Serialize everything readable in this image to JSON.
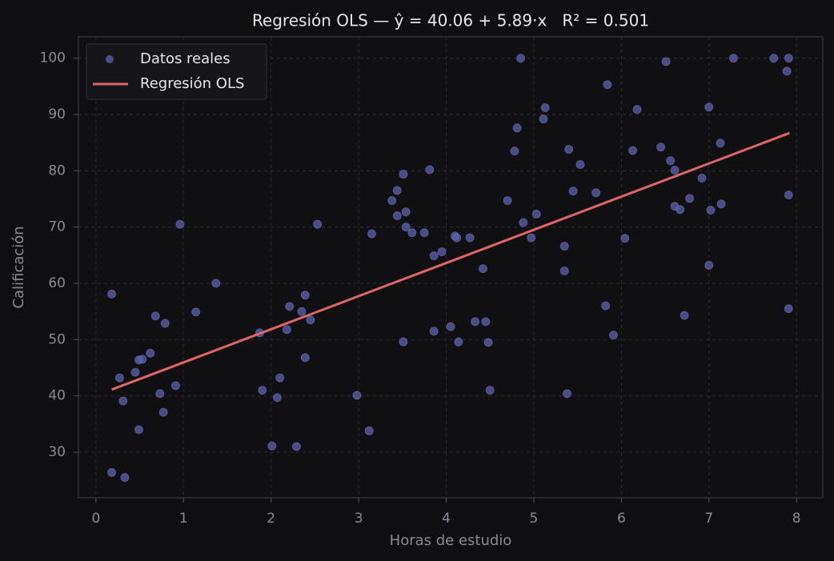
{
  "chart_data": {
    "type": "scatter",
    "title": "Regresión OLS — ŷ = 40.06 + 5.89·x   R² = 0.501",
    "x_label": "Horas de estudio",
    "y_label": "Calificación",
    "xlim": [
      -0.2,
      8.3
    ],
    "ylim": [
      21.9,
      103.8
    ],
    "xticks": [
      0,
      1,
      2,
      3,
      4,
      5,
      6,
      7,
      8
    ],
    "yticks": [
      30,
      40,
      50,
      60,
      70,
      80,
      90,
      100
    ],
    "grid": true,
    "legend": "upper left",
    "series": [
      {
        "name": "Datos reales",
        "type": "scatter",
        "color": "#5a62b0",
        "x": [
          0.18,
          0.18,
          0.27,
          0.31,
          0.33,
          0.45,
          0.49,
          0.49,
          0.53,
          0.62,
          0.68,
          0.73,
          0.77,
          0.79,
          0.91,
          0.96,
          1.14,
          1.37,
          1.87,
          1.9,
          2.01,
          2.07,
          2.1,
          2.18,
          2.21,
          2.29,
          2.35,
          2.39,
          2.39,
          2.45,
          2.53,
          2.98,
          3.12,
          3.15,
          3.38,
          3.44,
          3.44,
          3.51,
          3.51,
          3.54,
          3.54,
          3.61,
          3.75,
          3.81,
          3.86,
          3.86,
          3.95,
          4.05,
          4.1,
          4.12,
          4.14,
          4.27,
          4.33,
          4.42,
          4.45,
          4.48,
          4.5,
          4.7,
          4.78,
          4.81,
          4.85,
          4.88,
          4.97,
          5.03,
          5.11,
          5.13,
          5.35,
          5.35,
          5.38,
          5.4,
          5.45,
          5.53,
          5.71,
          5.82,
          5.84,
          5.91,
          6.04,
          6.13,
          6.18,
          6.45,
          6.51,
          6.56,
          6.61,
          6.61,
          6.67,
          6.72,
          6.78,
          6.92,
          7.0,
          7.0,
          7.02,
          7.13,
          7.14,
          7.28,
          7.74,
          7.89,
          7.91,
          7.91,
          7.91
        ],
        "values": [
          58.1,
          26.4,
          43.2,
          39.1,
          25.5,
          44.2,
          34.0,
          46.4,
          46.5,
          47.6,
          54.2,
          40.4,
          37.1,
          52.9,
          41.8,
          70.5,
          54.9,
          60.0,
          51.2,
          41.0,
          31.1,
          39.7,
          43.2,
          51.8,
          55.9,
          31.0,
          55.0,
          57.9,
          46.8,
          53.5,
          70.5,
          40.1,
          33.8,
          68.8,
          74.7,
          76.5,
          72.0,
          79.4,
          49.6,
          72.7,
          70.0,
          69.0,
          69.0,
          80.2,
          64.9,
          51.5,
          65.6,
          52.3,
          68.4,
          68.1,
          49.6,
          68.1,
          53.2,
          62.6,
          53.2,
          49.5,
          41.0,
          74.7,
          83.5,
          87.6,
          100,
          70.8,
          68.1,
          72.3,
          89.2,
          91.2,
          66.6,
          62.2,
          40.4,
          83.8,
          76.4,
          81.1,
          76.1,
          56.0,
          95.3,
          50.8,
          68.0,
          83.6,
          90.9,
          84.2,
          99.4,
          81.8,
          80.1,
          73.7,
          73.1,
          54.3,
          75.1,
          78.7,
          91.3,
          63.2,
          73.0,
          84.9,
          74.1,
          100,
          100,
          97.7,
          100,
          75.7,
          55.5
        ]
      },
      {
        "name": "Regresión OLS",
        "type": "line",
        "color": "#e06666",
        "x": [
          0.18,
          7.92
        ],
        "values": [
          41.12,
          86.71
        ]
      }
    ]
  }
}
